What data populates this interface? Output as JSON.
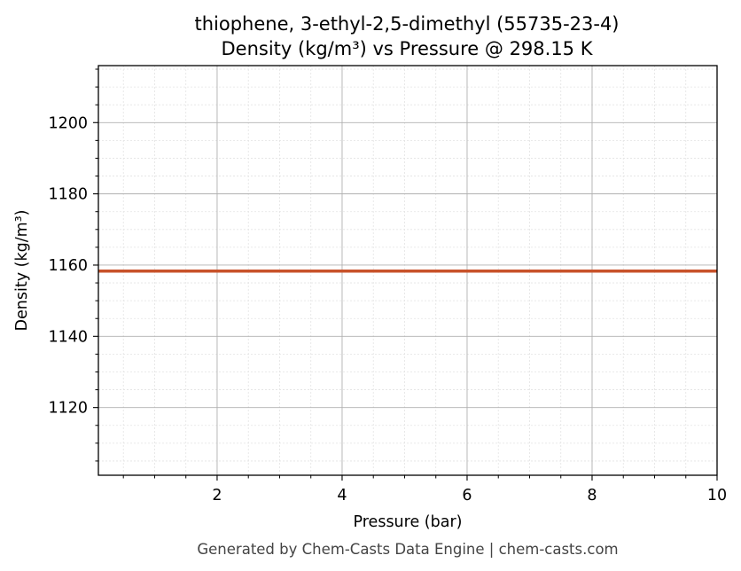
{
  "chart_data": {
    "type": "line",
    "title": "thiophene, 3-ethyl-2,5-dimethyl (55735-23-4)",
    "subtitle": "Density (kg/m³) vs Pressure @ 298.15 K",
    "xlabel": "Pressure (bar)",
    "ylabel": "Density (kg/m³)",
    "xlim": [
      0.1,
      10
    ],
    "ylim": [
      1101,
      1216
    ],
    "x_ticks": [
      2,
      4,
      6,
      8,
      10
    ],
    "y_ticks": [
      1120,
      1140,
      1160,
      1180,
      1200
    ],
    "grid": true,
    "series": [
      {
        "color": "#c8522a",
        "x": [
          0.1,
          1,
          2,
          3,
          4,
          5,
          6,
          7,
          8,
          9,
          10
        ],
        "y": [
          1158.3,
          1158.3,
          1158.3,
          1158.3,
          1158.3,
          1158.3,
          1158.3,
          1158.3,
          1158.3,
          1158.3,
          1158.3
        ]
      }
    ]
  },
  "footer": "Generated by Chem-Casts Data Engine | chem-casts.com"
}
